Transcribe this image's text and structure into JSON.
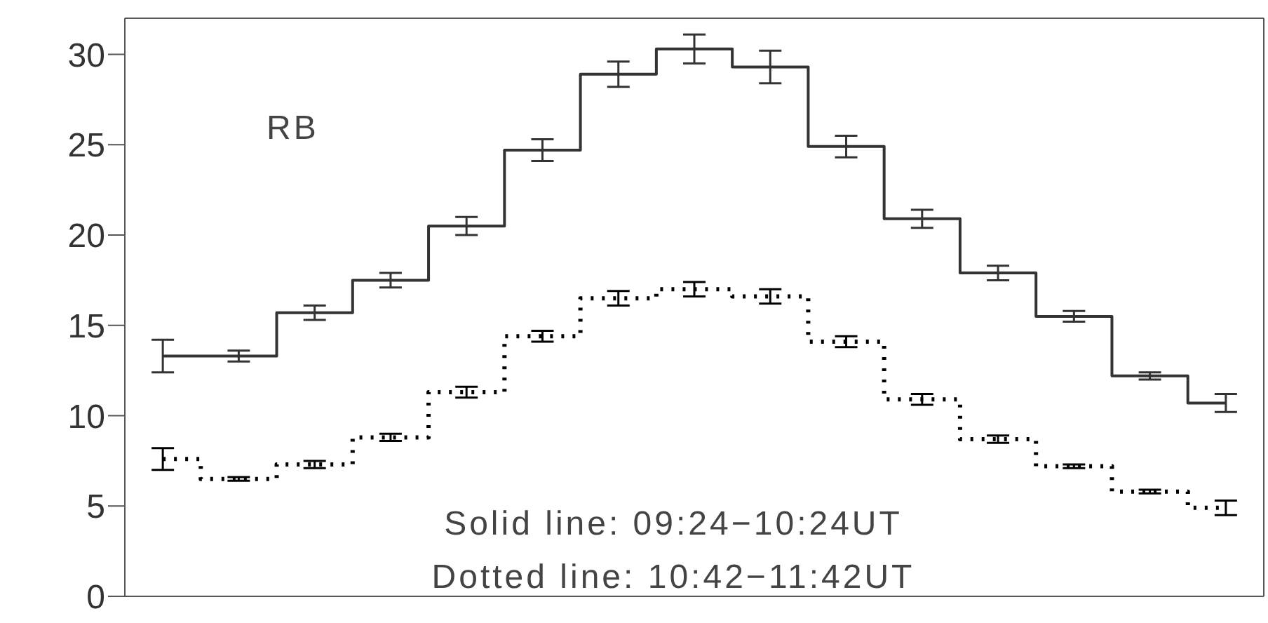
{
  "chart_data": {
    "type": "step",
    "categories": [
      null,
      null,
      null,
      null,
      null,
      null,
      null,
      null,
      null,
      null,
      null,
      null,
      null,
      null,
      null
    ],
    "series": [
      {
        "color": "#333333",
        "line_style": "solid",
        "values": [
          13.3,
          13.3,
          15.7,
          17.5,
          20.5,
          24.7,
          28.9,
          30.3,
          29.3,
          24.9,
          20.9,
          17.9,
          15.5,
          12.2,
          10.7
        ],
        "errors": [
          0.9,
          0.3,
          0.4,
          0.4,
          0.5,
          0.6,
          0.7,
          0.8,
          0.9,
          0.6,
          0.5,
          0.4,
          0.3,
          0.2,
          0.5
        ]
      },
      {
        "color": "#000000",
        "line_style": "dotted",
        "values": [
          7.6,
          6.5,
          7.3,
          8.8,
          11.3,
          14.4,
          16.5,
          17.0,
          16.6,
          14.1,
          10.9,
          8.7,
          7.2,
          5.8,
          4.9
        ],
        "errors": [
          0.6,
          0.1,
          0.2,
          0.2,
          0.3,
          0.3,
          0.4,
          0.4,
          0.4,
          0.3,
          0.3,
          0.2,
          0.1,
          0.1,
          0.4
        ]
      }
    ],
    "ylim": [
      0,
      32
    ],
    "yticks": [
      0,
      5,
      10,
      15,
      20,
      25,
      30
    ],
    "tick_labels": "y",
    "grid": false,
    "legend": false,
    "marker": "none",
    "annotations": [
      "RB",
      "Solid line: 09:24−10:24UT",
      "Dotted line: 10:42−11:42UT"
    ]
  }
}
